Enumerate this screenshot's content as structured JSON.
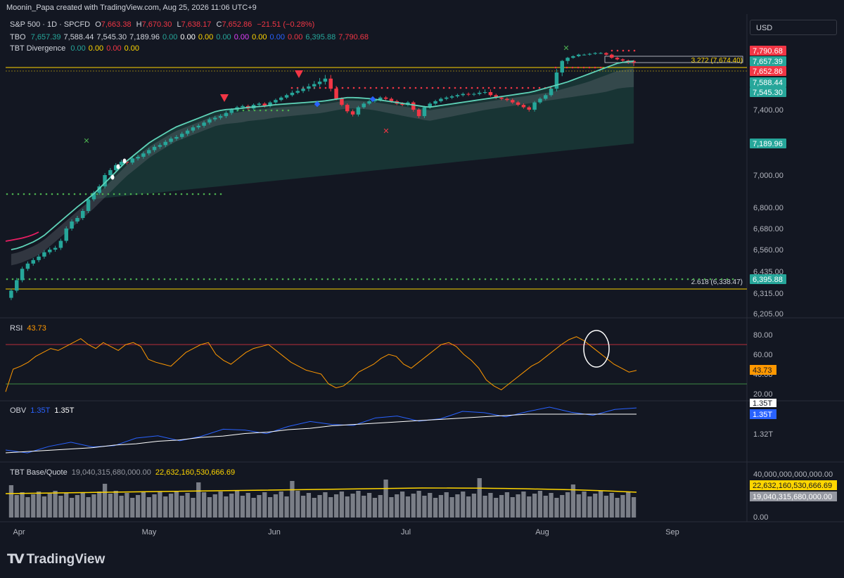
{
  "header": {
    "credit": "Moonin_Papa created with TradingView.com, Aug 25, 2026 11:06 UTC+9"
  },
  "legend": {
    "symbol": "S&P 500 · 1D · SPCFD",
    "ohlc": {
      "o_label": "O",
      "o": "7,663.38",
      "h_label": "H",
      "h": "7,670.30",
      "l_label": "L",
      "l": "7,638.17",
      "c_label": "C",
      "c": "7,652.86",
      "chg": "−21.51 (−0.28%)"
    },
    "tbo": {
      "label": "TBO",
      "values": [
        {
          "v": "7,657.39",
          "c": "#26a69a"
        },
        {
          "v": "7,588.44",
          "c": "#d1d4dc"
        },
        {
          "v": "7,545.30",
          "c": "#d1d4dc"
        },
        {
          "v": "7,189.96",
          "c": "#d1d4dc"
        },
        {
          "v": "0.00",
          "c": "#26a69a"
        },
        {
          "v": "0.00",
          "c": "#ffffff"
        },
        {
          "v": "0.00",
          "c": "#ffd600"
        },
        {
          "v": "0.00",
          "c": "#26a69a"
        },
        {
          "v": "0.00",
          "c": "#e040fb"
        },
        {
          "v": "0.00",
          "c": "#ffd600"
        },
        {
          "v": "0.00",
          "c": "#2962ff"
        },
        {
          "v": "0.00",
          "c": "#f23645"
        },
        {
          "v": "6,395.88",
          "c": "#26a69a"
        },
        {
          "v": "7,790.68",
          "c": "#f23645"
        }
      ]
    },
    "div": {
      "label": "TBT Divergence",
      "values": [
        {
          "v": "0.00",
          "c": "#26a69a"
        },
        {
          "v": "0.00",
          "c": "#ffd600"
        },
        {
          "v": "0.00",
          "c": "#f23645"
        },
        {
          "v": "0.00",
          "c": "#ffd600"
        }
      ]
    }
  },
  "currency": "USD",
  "panes": {
    "rsi": {
      "label": "RSI",
      "value": "43.73"
    },
    "obv": {
      "label": "OBV",
      "v1": "1.35T",
      "v2": "1.35T"
    },
    "bq": {
      "label": "TBT Base/Quote",
      "v1": "19,040,315,680,000.00",
      "v2": "22,632,160,530,666.69"
    }
  },
  "price_axis": {
    "ticks": [
      "7,400.00",
      "7,000.00",
      "6,800.00",
      "6,680.00",
      "6,560.00",
      "6,435.00",
      "6,315.00",
      "6,205.00"
    ],
    "badges": [
      {
        "v": "7,790.68",
        "bg": "#f23645",
        "fg": "#ffffff"
      },
      {
        "v": "7,657.39",
        "bg": "#26a69a",
        "fg": "#ffffff"
      },
      {
        "v": "7,652.86",
        "bg": "#f23645",
        "fg": "#ffffff"
      },
      {
        "v": "7,588.44",
        "bg": "#26a69a",
        "fg": "#ffffff"
      },
      {
        "v": "7,545.30",
        "bg": "#26a69a",
        "fg": "#ffffff"
      },
      {
        "v": "7,189.96",
        "bg": "#26a69a",
        "fg": "#ffffff"
      },
      {
        "v": "6,395.88",
        "bg": "#26a69a",
        "fg": "#ffffff"
      }
    ]
  },
  "fib_labels": {
    "upper": "3.272 (7,674.40)",
    "lower": "2.618 (6,338.47)"
  },
  "rsi_axis": [
    "80.00",
    "60.00",
    "40.00",
    "20.00"
  ],
  "obv_axis": [
    "1.32T"
  ],
  "bq_axis": [
    "40,000,000,000,000.00",
    "0.00"
  ],
  "time_axis": [
    "Apr",
    "May",
    "Jun",
    "Jul",
    "Aug",
    "Sep"
  ],
  "brand": "TradingView",
  "chart_data": [
    {
      "type": "candlestick",
      "title": "S&P 500 · 1D · SPCFD",
      "x_range": [
        "Apr",
        "Aug 25"
      ],
      "ylim": [
        6205,
        7790
      ],
      "close": [
        6330,
        6390,
        6450,
        6480,
        6500,
        6520,
        6545,
        6560,
        6570,
        6610,
        6680,
        6720,
        6740,
        6780,
        6850,
        6890,
        6930,
        7000,
        7030,
        7060,
        7080,
        7075,
        7100,
        7110,
        7130,
        7150,
        7170,
        7180,
        7200,
        7220,
        7230,
        7250,
        7270,
        7290,
        7300,
        7320,
        7340,
        7350,
        7360,
        7380,
        7400,
        7420,
        7430,
        7410,
        7440,
        7450,
        7430,
        7460,
        7480,
        7500,
        7520,
        7540,
        7550,
        7560,
        7570,
        7580,
        7590,
        7600,
        7560,
        7490,
        7440,
        7390,
        7370,
        7420,
        7450,
        7470,
        7480,
        7500,
        7490,
        7470,
        7450,
        7440,
        7460,
        7400,
        7360,
        7420,
        7450,
        7470,
        7490,
        7500,
        7510,
        7520,
        7530,
        7525,
        7530,
        7540,
        7545,
        7520,
        7500,
        7490,
        7480,
        7460,
        7440,
        7420,
        7400,
        7460,
        7490,
        7520,
        7560,
        7620,
        7660,
        7700,
        7720,
        7740,
        7740,
        7750,
        7760,
        7760,
        7740,
        7700,
        7680,
        7665,
        7660,
        7652.86
      ],
      "ema": [
        6560,
        6570,
        6590,
        6610,
        6640,
        6680,
        6720,
        6760,
        6800,
        6840,
        6880,
        6930,
        6980,
        7030,
        7080,
        7120,
        7160,
        7200,
        7230,
        7260,
        7290,
        7310,
        7330,
        7350,
        7370,
        7390,
        7400,
        7405,
        7410,
        7420,
        7425,
        7430,
        7440,
        7445,
        7450,
        7455,
        7460,
        7465,
        7470,
        7480,
        7490,
        7500,
        7500,
        7495,
        7490,
        7480,
        7470,
        7460,
        7450,
        7440,
        7430,
        7420,
        7430,
        7440,
        7450,
        7460,
        7470,
        7480,
        7490,
        7500,
        7510,
        7520,
        7530,
        7540,
        7550,
        7560,
        7570,
        7580,
        7590,
        7600,
        7610,
        7620,
        7630,
        7640,
        7650,
        7655,
        7657.39
      ],
      "support_dots": [
        {
          "from": "Apr",
          "to": "May",
          "v": 6900
        },
        {
          "from": "May",
          "to": "Jun",
          "v": 7400
        },
        {
          "from": "Jun",
          "to": "Aug",
          "v": 7545
        }
      ],
      "lines": [
        {
          "name": "2.618 (6,338.47)",
          "v": 6338.47
        },
        {
          "name": "3.272 (7,674.40)",
          "v": 7674.4
        }
      ]
    },
    {
      "type": "line",
      "title": "RSI",
      "ylim": [
        20,
        100
      ],
      "values": [
        22,
        45,
        48,
        52,
        58,
        62,
        66,
        64,
        68,
        72,
        76,
        70,
        66,
        72,
        68,
        64,
        70,
        72,
        68,
        55,
        52,
        50,
        48,
        55,
        62,
        66,
        70,
        72,
        60,
        54,
        50,
        56,
        62,
        66,
        68,
        70,
        64,
        58,
        52,
        48,
        44,
        42,
        40,
        30,
        26,
        28,
        34,
        42,
        46,
        50,
        56,
        60,
        58,
        50,
        46,
        52,
        58,
        64,
        70,
        72,
        68,
        60,
        54,
        46,
        34,
        28,
        24,
        30,
        36,
        42,
        48,
        52,
        58,
        64,
        70,
        75,
        78,
        74,
        68,
        62,
        56,
        50,
        46,
        42,
        43.73
      ],
      "overbought": 70,
      "oversold": 30
    },
    {
      "type": "line",
      "title": "OBV",
      "series": [
        {
          "name": "1.35T",
          "values": [
            1.32,
            1.321,
            1.322,
            1.323,
            1.324,
            1.326,
            1.327,
            1.329,
            1.33,
            1.332,
            1.333,
            1.335,
            1.336,
            1.338,
            1.339,
            1.341,
            1.342,
            1.343,
            1.344,
            1.345,
            1.346,
            1.347,
            1.348,
            1.349,
            1.35,
            1.35,
            1.35,
            1.35,
            1.35,
            1.35
          ]
        }
      ]
    },
    {
      "type": "bar",
      "title": "TBT Base/Quote",
      "values": [
        19040315680000
      ],
      "ref": 22632160530666.69
    }
  ]
}
